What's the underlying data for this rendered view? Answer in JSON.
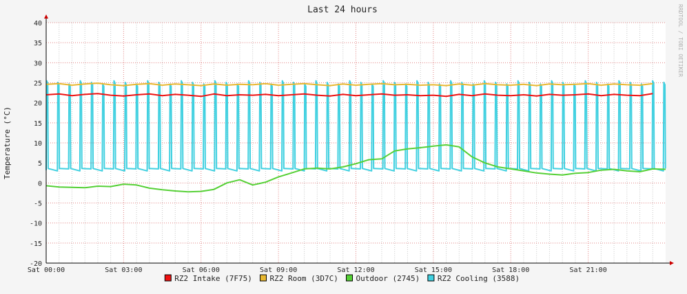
{
  "chart_data": {
    "type": "line",
    "title": "Last 24 hours",
    "ylabel": "Temperature (°C)",
    "xlabel": "",
    "watermark": "RRDTOOL / TOBI OETIKER",
    "ylim": [
      -20,
      40
    ],
    "yticks": [
      40,
      35,
      30,
      25,
      20,
      15,
      10,
      5,
      0,
      -5,
      -10,
      -15,
      -20
    ],
    "xlim": [
      0,
      24
    ],
    "xticks": [
      {
        "value": 0,
        "label": "Sat 00:00"
      },
      {
        "value": 3,
        "label": "Sat 03:00"
      },
      {
        "value": 6,
        "label": "Sat 06:00"
      },
      {
        "value": 9,
        "label": "Sat 09:00"
      },
      {
        "value": 12,
        "label": "Sat 12:00"
      },
      {
        "value": 15,
        "label": "Sat 15:00"
      },
      {
        "value": 18,
        "label": "Sat 18:00"
      },
      {
        "value": 21,
        "label": "Sat 21:00"
      }
    ],
    "grid": true,
    "legend_position": "bottom",
    "colors": {
      "background": "#f5f5f5",
      "canvas": "#ffffff",
      "major_grid": "#e08080",
      "minor_grid": "#c8c8c8",
      "axis": "#cc0000",
      "text": "#222222"
    },
    "series": [
      {
        "name": "RZ2 Intake (7F75)",
        "color": "#ee1111",
        "x": [
          0.0,
          0.5,
          1.0,
          1.5,
          2.0,
          2.5,
          3.0,
          3.5,
          4.0,
          4.5,
          5.0,
          5.5,
          6.0,
          6.5,
          7.0,
          7.5,
          8.0,
          8.5,
          9.0,
          9.5,
          10.0,
          10.5,
          11.0,
          11.5,
          12.0,
          12.5,
          13.0,
          13.5,
          14.0,
          14.5,
          15.0,
          15.5,
          16.0,
          16.5,
          17.0,
          17.5,
          18.0,
          18.5,
          19.0,
          19.5,
          20.0,
          20.5,
          21.0,
          21.5,
          22.0,
          22.5,
          23.0,
          23.5
        ],
        "y": [
          22.0,
          22.2,
          21.8,
          22.1,
          22.3,
          21.9,
          21.7,
          22.0,
          22.2,
          21.8,
          22.1,
          21.9,
          21.6,
          22.2,
          21.8,
          22.0,
          21.9,
          22.1,
          21.8,
          22.0,
          22.2,
          21.9,
          21.7,
          22.1,
          21.8,
          22.0,
          22.2,
          21.9,
          22.0,
          21.8,
          21.9,
          21.6,
          22.1,
          21.8,
          22.2,
          21.9,
          21.8,
          22.0,
          21.7,
          22.1,
          21.9,
          22.0,
          22.2,
          21.8,
          22.1,
          21.9,
          21.8,
          22.3
        ]
      },
      {
        "name": "RZ2 Room (3D7C)",
        "color": "#e8b830",
        "x": [
          0.0,
          0.5,
          1.0,
          1.5,
          2.0,
          2.5,
          3.0,
          3.5,
          4.0,
          4.5,
          5.0,
          5.5,
          6.0,
          6.5,
          7.0,
          7.5,
          8.0,
          8.5,
          9.0,
          9.5,
          10.0,
          10.5,
          11.0,
          11.5,
          12.0,
          12.5,
          13.0,
          13.5,
          14.0,
          14.5,
          15.0,
          15.5,
          16.0,
          16.5,
          17.0,
          17.5,
          18.0,
          18.5,
          19.0,
          19.5,
          20.0,
          20.5,
          21.0,
          21.5,
          22.0,
          22.5,
          23.0,
          23.5
        ],
        "y": [
          24.6,
          24.8,
          24.4,
          24.7,
          24.9,
          24.5,
          24.3,
          24.6,
          24.8,
          24.4,
          24.7,
          24.5,
          24.3,
          24.7,
          24.4,
          24.6,
          24.5,
          24.8,
          24.4,
          24.6,
          24.8,
          24.5,
          24.3,
          24.7,
          24.4,
          24.6,
          24.8,
          24.5,
          24.6,
          24.4,
          24.5,
          24.3,
          24.7,
          24.4,
          24.8,
          24.5,
          24.4,
          24.6,
          24.3,
          24.7,
          24.5,
          24.6,
          24.8,
          24.4,
          24.7,
          24.5,
          24.4,
          24.8
        ]
      },
      {
        "name": "Outdoor (2745)",
        "color": "#55d035",
        "x": [
          0.0,
          0.5,
          1.0,
          1.5,
          2.0,
          2.5,
          3.0,
          3.5,
          4.0,
          4.5,
          5.0,
          5.5,
          6.0,
          6.5,
          7.0,
          7.5,
          8.0,
          8.5,
          9.0,
          9.5,
          10.0,
          10.5,
          11.0,
          11.5,
          12.0,
          12.5,
          13.0,
          13.5,
          14.0,
          14.5,
          15.0,
          15.5,
          16.0,
          16.5,
          17.0,
          17.5,
          18.0,
          18.5,
          19.0,
          19.5,
          20.0,
          20.5,
          21.0,
          21.5,
          22.0,
          22.5,
          23.0,
          23.5,
          24.0
        ],
        "y": [
          -0.7,
          -1.0,
          -1.1,
          -1.2,
          -0.8,
          -0.9,
          -0.3,
          -0.5,
          -1.3,
          -1.7,
          -2.0,
          -2.2,
          -2.1,
          -1.6,
          0.0,
          0.8,
          -0.5,
          0.2,
          1.5,
          2.5,
          3.5,
          3.7,
          3.5,
          4.0,
          4.8,
          5.8,
          6.0,
          8.0,
          8.5,
          8.8,
          9.2,
          9.5,
          9.0,
          6.5,
          5.0,
          4.0,
          3.5,
          3.0,
          2.5,
          2.2,
          2.0,
          2.4,
          2.6,
          3.2,
          3.4,
          3.0,
          2.8,
          3.5,
          3.4
        ]
      },
      {
        "name": "RZ2 Cooling (3588)",
        "color": "#40d0e0",
        "pattern": {
          "low": 3.2,
          "high": 25.5,
          "cycles_per_hour": 2.3
        }
      }
    ]
  }
}
